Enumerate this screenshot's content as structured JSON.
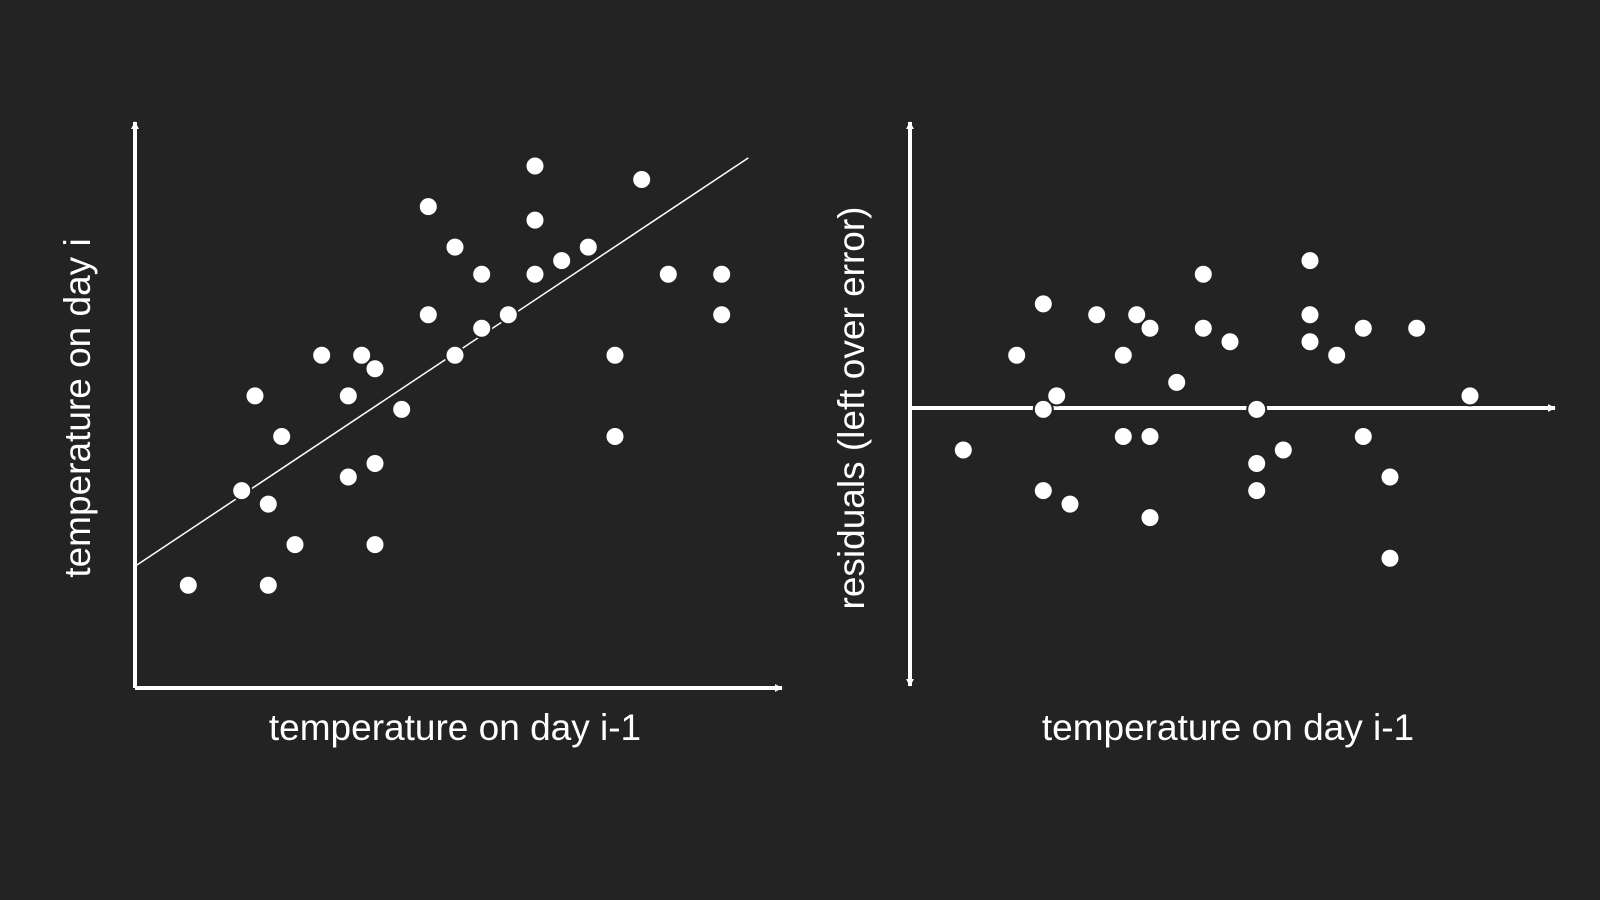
{
  "colors": {
    "background": "#232323",
    "foreground": "#ffffff"
  },
  "chart_data": [
    {
      "type": "scatter",
      "title": "",
      "xlabel": "temperature on day i-1",
      "ylabel": "temperature on day i",
      "xlim": [
        0,
        24
      ],
      "ylim": [
        0,
        21
      ],
      "grid": false,
      "trend_line": {
        "x": [
          0,
          23
        ],
        "y": [
          4.5,
          19.6
        ]
      },
      "points": [
        {
          "x": 2,
          "y": 3.8
        },
        {
          "x": 5,
          "y": 3.8
        },
        {
          "x": 6,
          "y": 5.3
        },
        {
          "x": 9,
          "y": 5.3
        },
        {
          "x": 4,
          "y": 7.3
        },
        {
          "x": 5,
          "y": 6.8
        },
        {
          "x": 8,
          "y": 7.8
        },
        {
          "x": 9,
          "y": 8.3
        },
        {
          "x": 4.5,
          "y": 10.8
        },
        {
          "x": 5.5,
          "y": 9.3
        },
        {
          "x": 8,
          "y": 10.8
        },
        {
          "x": 10,
          "y": 10.3
        },
        {
          "x": 7,
          "y": 12.3
        },
        {
          "x": 8.5,
          "y": 12.3
        },
        {
          "x": 9,
          "y": 11.8
        },
        {
          "x": 11,
          "y": 13.8
        },
        {
          "x": 12,
          "y": 12.3
        },
        {
          "x": 13,
          "y": 13.3
        },
        {
          "x": 14,
          "y": 13.8
        },
        {
          "x": 18,
          "y": 12.3
        },
        {
          "x": 18,
          "y": 9.3
        },
        {
          "x": 15,
          "y": 15.3
        },
        {
          "x": 17,
          "y": 16.3
        },
        {
          "x": 20,
          "y": 15.3
        },
        {
          "x": 22,
          "y": 13.8
        },
        {
          "x": 22,
          "y": 13.8
        },
        {
          "x": 11,
          "y": 17.8
        },
        {
          "x": 12,
          "y": 16.3
        },
        {
          "x": 13,
          "y": 15.3
        },
        {
          "x": 15,
          "y": 17.3
        },
        {
          "x": 16,
          "y": 15.8
        },
        {
          "x": 15,
          "y": 19.3
        },
        {
          "x": 19,
          "y": 18.8
        },
        {
          "x": 22,
          "y": 15.3
        },
        {
          "x": 20,
          "y": 15.3
        }
      ]
    },
    {
      "type": "scatter",
      "title": "",
      "xlabel": "temperature on day i-1",
      "ylabel": "residuals (left over error)",
      "xlim": [
        0,
        24
      ],
      "ylim": [
        -10.5,
        10.5
      ],
      "zero_line": true,
      "grid": false,
      "points": [
        {
          "x": 2,
          "y": -1.7
        },
        {
          "x": 5,
          "y": 3.7
        },
        {
          "x": 5.5,
          "y": 0.3
        },
        {
          "x": 5,
          "y": -0.2
        },
        {
          "x": 4,
          "y": 1.8
        },
        {
          "x": 5,
          "y": -3.2
        },
        {
          "x": 6,
          "y": -3.7
        },
        {
          "x": 7,
          "y": 3.3
        },
        {
          "x": 8,
          "y": 1.8
        },
        {
          "x": 8,
          "y": -1.2
        },
        {
          "x": 8.5,
          "y": 3.3
        },
        {
          "x": 9,
          "y": 2.8
        },
        {
          "x": 9,
          "y": -1.2
        },
        {
          "x": 9,
          "y": -4.2
        },
        {
          "x": 10,
          "y": 0.8
        },
        {
          "x": 11,
          "y": 4.8
        },
        {
          "x": 11,
          "y": 2.8
        },
        {
          "x": 12,
          "y": 2.3
        },
        {
          "x": 13,
          "y": -0.2
        },
        {
          "x": 13,
          "y": -2.2
        },
        {
          "x": 13,
          "y": -3.2
        },
        {
          "x": 14,
          "y": -1.7
        },
        {
          "x": 15,
          "y": 5.3
        },
        {
          "x": 15,
          "y": 3.3
        },
        {
          "x": 15,
          "y": 2.3
        },
        {
          "x": 16,
          "y": 1.8
        },
        {
          "x": 17,
          "y": 2.8
        },
        {
          "x": 17,
          "y": -1.2
        },
        {
          "x": 18,
          "y": -2.7
        },
        {
          "x": 18,
          "y": -5.7
        },
        {
          "x": 19,
          "y": 2.8
        },
        {
          "x": 21,
          "y": 0.3
        }
      ]
    }
  ]
}
